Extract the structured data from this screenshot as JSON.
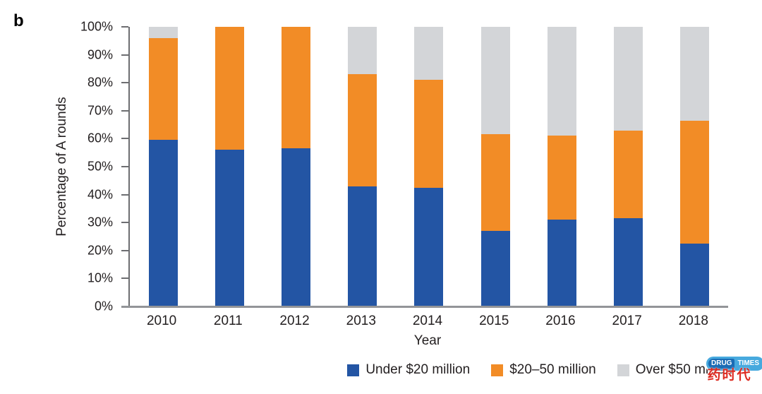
{
  "panel_label": "b",
  "watermark": {
    "logo_left": "DRUG",
    "logo_right": "TIMES",
    "chinese": "药时代"
  },
  "chart_data": {
    "type": "bar",
    "stacked": true,
    "title": "",
    "xlabel": "Year",
    "ylabel": "Percentage of A rounds",
    "ylim": [
      0,
      100
    ],
    "y_ticks_percent": [
      0,
      10,
      20,
      30,
      40,
      50,
      60,
      70,
      80,
      90,
      100
    ],
    "y_tick_labels": [
      "0%",
      "10%",
      "20%",
      "30%",
      "40%",
      "50%",
      "60%",
      "70%",
      "80%",
      "90%",
      "100%"
    ],
    "grid": false,
    "legend_position": "bottom-right",
    "categories": [
      "2010",
      "2011",
      "2012",
      "2013",
      "2014",
      "2015",
      "2016",
      "2017",
      "2018"
    ],
    "series": [
      {
        "name": "Under $20 million",
        "color": "#2355a4",
        "values": [
          59.5,
          56,
          56.5,
          43,
          42.5,
          27,
          31,
          31.5,
          22.5
        ]
      },
      {
        "name": "$20–50 million",
        "color": "#f28c26",
        "values": [
          36.5,
          44,
          43.5,
          40,
          38.5,
          34.5,
          30,
          31.5,
          44
        ]
      },
      {
        "name": "Over $50 million",
        "color": "#d3d5d8",
        "values": [
          4,
          0,
          0,
          17,
          19,
          38.5,
          39,
          37,
          33.5
        ]
      }
    ],
    "axis_colors": {
      "y_axis": "#6d6e71",
      "baseline": "#939598",
      "text": "#231f20"
    }
  }
}
